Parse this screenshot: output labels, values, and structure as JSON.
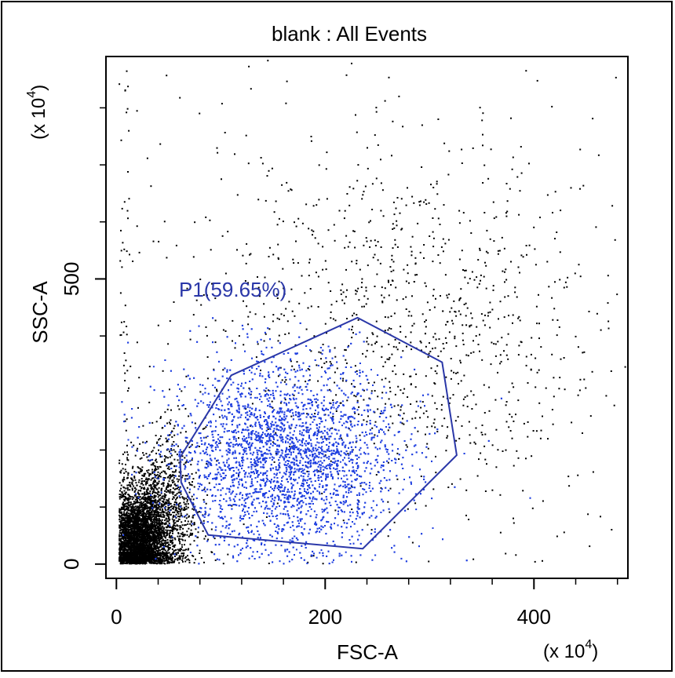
{
  "chart_data": {
    "type": "scatter",
    "title": "blank : All Events",
    "xlabel": "FSC-A",
    "ylabel": "SSC-A",
    "x_multiplier": "(x 10",
    "y_multiplier": "(x 10",
    "multiplier_exponent": "4",
    "xlim": [
      -10,
      490
    ],
    "ylim": [
      -25,
      890
    ],
    "x_ticks": [
      {
        "value": 0,
        "label": "0"
      },
      {
        "value": 200,
        "label": "200"
      },
      {
        "value": 400,
        "label": "400"
      }
    ],
    "x_minor_ticks": [
      40,
      80,
      120,
      160,
      240,
      280,
      320,
      360,
      440,
      480
    ],
    "y_ticks": [
      {
        "value": 0,
        "label": "0"
      },
      {
        "value": 500,
        "label": "500"
      }
    ],
    "y_minor_ticks": [
      100,
      200,
      300,
      400,
      600,
      700,
      800
    ],
    "grid": false,
    "gate": {
      "name": "P1",
      "label": "P1(59.65%)",
      "percent": 59.65,
      "color": "#2a37a8",
      "vertices": [
        [
          61,
          187
        ],
        [
          110,
          331
        ],
        [
          231,
          432
        ],
        [
          312,
          354
        ],
        [
          326,
          191
        ],
        [
          236,
          27
        ],
        [
          88,
          51
        ],
        [
          62,
          143
        ]
      ]
    },
    "series": [
      {
        "color": "#000000",
        "clusters": [
          {
            "count": 3200,
            "x_mean": 20,
            "x_sd": 12,
            "y_mean": 40,
            "y_sd": 40
          },
          {
            "count": 1400,
            "x_mean": 40,
            "x_sd": 18,
            "y_mean": 90,
            "y_sd": 65
          },
          {
            "count": 900,
            "x_mean": 290,
            "x_sd": 90,
            "y_mean": 420,
            "y_sd": 160
          },
          {
            "count": 350,
            "x_mean": 180,
            "x_sd": 150,
            "y_mean": 450,
            "y_sd": 260
          }
        ]
      },
      {
        "name": "P1",
        "color": "#1f3fe0",
        "clusters": [
          {
            "count": 5200,
            "x_mean": 160,
            "x_sd": 55,
            "y_mean": 190,
            "y_sd": 80
          }
        ]
      }
    ]
  }
}
